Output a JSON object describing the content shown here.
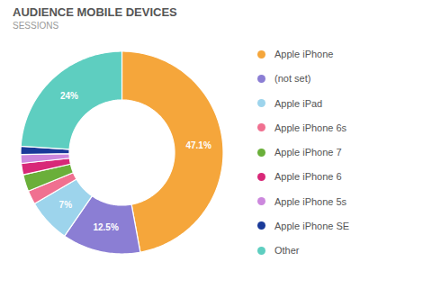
{
  "chart_data": {
    "type": "pie",
    "title": "AUDIENCE MOBILE DEVICES",
    "subtitle": "SESSIONS",
    "categories": [
      "Apple iPhone",
      "(not set)",
      "Apple iPad",
      "Apple iPhone 6s",
      "Apple iPhone 7",
      "Apple iPhone 6",
      "Apple iPhone 5s",
      "Apple iPhone SE",
      "Other"
    ],
    "values": [
      47.1,
      12.5,
      7.0,
      2.2,
      2.7,
      1.8,
      1.4,
      1.3,
      24.0
    ],
    "colors": [
      "#F5A63B",
      "#8B7ED4",
      "#9DD4EC",
      "#F07090",
      "#6AAF3A",
      "#D82878",
      "#CC88DD",
      "#1A3A99",
      "#5ECEC0"
    ],
    "value_labels": [
      "47.1%",
      "12.5%",
      "7%",
      null,
      null,
      null,
      null,
      null,
      "24%"
    ],
    "data_labels": true,
    "legend": "right"
  }
}
